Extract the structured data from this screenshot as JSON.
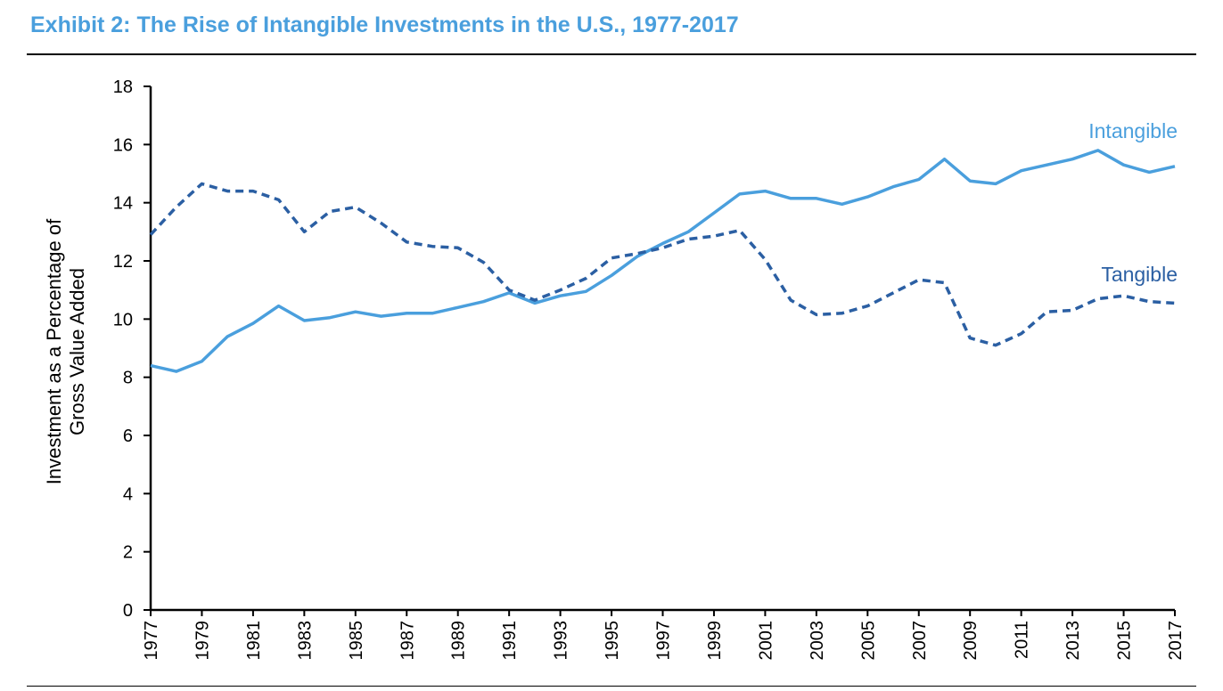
{
  "title": "Exhibit 2: The Rise of Intangible Investments in the U.S., 1977-2017",
  "colors": {
    "title": "#4a9fdd",
    "intangible": "#4a9fdd",
    "tangible": "#2b5fa3",
    "axis": "#000000"
  },
  "chart_data": {
    "type": "line",
    "ylabel": "Investment as a Percentage of Gross Value Added",
    "ylabel_lines": [
      "Investment as a Percentage of",
      "Gross Value Added"
    ],
    "ylim": [
      0,
      18
    ],
    "yticks": [
      0,
      2,
      4,
      6,
      8,
      10,
      12,
      14,
      16,
      18
    ],
    "xlim": [
      1977,
      2017
    ],
    "xticks": [
      1977,
      1979,
      1981,
      1983,
      1985,
      1987,
      1989,
      1991,
      1993,
      1995,
      1997,
      1999,
      2001,
      2003,
      2005,
      2007,
      2009,
      2011,
      2013,
      2015,
      2017
    ],
    "x": [
      1977,
      1978,
      1979,
      1980,
      1981,
      1982,
      1983,
      1984,
      1985,
      1986,
      1987,
      1988,
      1989,
      1990,
      1991,
      1992,
      1993,
      1994,
      1995,
      1996,
      1997,
      1998,
      1999,
      2000,
      2001,
      2002,
      2003,
      2004,
      2005,
      2006,
      2007,
      2008,
      2009,
      2010,
      2011,
      2012,
      2013,
      2014,
      2015,
      2016,
      2017
    ],
    "grid": false,
    "legend": "inline labels",
    "series": [
      {
        "name": "Intangible",
        "style": "solid",
        "values": [
          8.4,
          8.2,
          8.55,
          9.4,
          9.85,
          10.45,
          9.95,
          10.05,
          10.25,
          10.1,
          10.2,
          10.2,
          10.4,
          10.6,
          10.9,
          10.55,
          10.8,
          10.95,
          11.5,
          12.15,
          12.6,
          13.0,
          13.65,
          14.3,
          14.4,
          14.15,
          14.15,
          13.95,
          14.2,
          14.55,
          14.8,
          15.5,
          14.75,
          14.65,
          15.1,
          15.3,
          15.5,
          15.8,
          15.3,
          15.05,
          15.25
        ]
      },
      {
        "name": "Tangible",
        "style": "dashed",
        "values": [
          12.9,
          13.85,
          14.65,
          14.4,
          14.4,
          14.1,
          13.0,
          13.7,
          13.85,
          13.3,
          12.65,
          12.5,
          12.45,
          11.95,
          11.0,
          10.65,
          11.0,
          11.4,
          12.1,
          12.25,
          12.45,
          12.75,
          12.85,
          13.05,
          12.05,
          10.65,
          10.15,
          10.2,
          10.45,
          10.9,
          11.35,
          11.25,
          9.35,
          9.1,
          9.5,
          10.25,
          10.3,
          10.7,
          10.8,
          10.6,
          10.55
        ]
      }
    ]
  }
}
